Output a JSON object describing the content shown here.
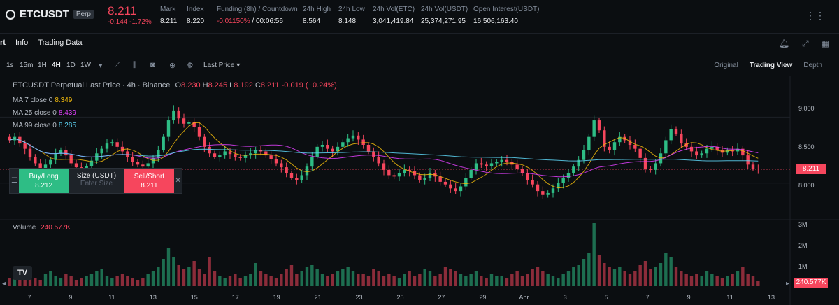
{
  "header": {
    "symbol": "ETCUSDT",
    "badge": "Perp",
    "last_price": "8.211",
    "change": "-0.144  -1.72%",
    "stats": [
      {
        "label": "Mark",
        "value": "8.211",
        "red": false
      },
      {
        "label": "Index",
        "value": "8.220",
        "red": false
      },
      {
        "label": "Funding (8h) / Countdown",
        "value_a": "-0.01150%",
        "value_b": " / 00:06:56",
        "red": true
      },
      {
        "label": "24h High",
        "value": "8.564",
        "red": false
      },
      {
        "label": "24h Low",
        "value": "8.148",
        "red": false
      },
      {
        "label": "24h Vol(ETC)",
        "value": "3,041,419.84",
        "red": false
      },
      {
        "label": "24h Vol(USDT)",
        "value": "25,374,271.95",
        "red": false
      },
      {
        "label": "Open Interest(USDT)",
        "value": "16,506,163.40",
        "red": false
      }
    ]
  },
  "tabs": [
    "rt",
    "Info",
    "Trading Data"
  ],
  "toolbar": {
    "timeframes": [
      "1s",
      "15m",
      "1H",
      "4H",
      "1D",
      "1W"
    ],
    "active_timeframe": "4H",
    "price_type": "Last Price",
    "views": [
      "Original",
      "Trading View",
      "Depth"
    ],
    "active_view": "Trading View"
  },
  "chart_legend": {
    "title": "ETCUSDT Perpetual Last Price · 4h · Binance",
    "o_label": "O",
    "o_value": "8.230",
    "h_label": "H",
    "h_value": "8.245",
    "l_label": "L",
    "l_value": "8.192",
    "c_label": "C",
    "c_value": "8.211",
    "change": "-0.019 (−0.24%)",
    "ma": [
      {
        "label": "MA 7 close 0",
        "value": "8.349",
        "color": "#f0b90b"
      },
      {
        "label": "MA 25 close 0",
        "value": "8.439",
        "color": "#e040fb"
      },
      {
        "label": "MA 99 close 0",
        "value": "8.285",
        "color": "#5dd5f6"
      }
    ]
  },
  "order_panel": {
    "buy_label": "Buy/Long",
    "buy_price": "8.212",
    "size_label": "Size (USDT)",
    "size_placeholder": "Enter Size",
    "sell_label": "Sell/Short",
    "sell_price": "8.211"
  },
  "price_axis": {
    "ticks": [
      "9.000",
      "8.500",
      "8.000"
    ],
    "current": "8.211"
  },
  "volume": {
    "label": "Volume",
    "value": "240.577K",
    "ticks": [
      "3M",
      "2M",
      "1M"
    ],
    "current": "240.577K"
  },
  "date_axis": [
    "7",
    "9",
    "11",
    "13",
    "15",
    "17",
    "19",
    "21",
    "23",
    "25",
    "27",
    "29",
    "Apr",
    "3",
    "5",
    "7",
    "9",
    "11",
    "13"
  ],
  "colors": {
    "up": "#2ebd85",
    "down": "#f6465d",
    "bg": "#0b0e11"
  },
  "chart_data": {
    "type": "candlestick",
    "interval": "4h",
    "ylim": [
      7.5,
      9.3
    ],
    "approx_closes": [
      8.65,
      8.7,
      8.6,
      8.52,
      8.4,
      8.3,
      8.22,
      8.28,
      8.35,
      8.45,
      8.5,
      8.42,
      8.3,
      8.24,
      8.2,
      8.26,
      8.34,
      8.45,
      8.52,
      8.6,
      8.62,
      8.55,
      8.48,
      8.4,
      8.32,
      8.28,
      8.25,
      8.3,
      8.38,
      8.5,
      8.7,
      8.95,
      9.1,
      8.98,
      8.9,
      8.92,
      8.85,
      8.7,
      8.55,
      8.45,
      8.4,
      8.42,
      8.48,
      8.44,
      8.4,
      8.38,
      8.42,
      8.45,
      8.5,
      8.48,
      8.42,
      8.36,
      8.3,
      8.24,
      8.15,
      8.08,
      8.05,
      8.12,
      8.25,
      8.4,
      8.55,
      8.58,
      8.52,
      8.48,
      8.55,
      8.62,
      8.68,
      8.72,
      8.66,
      8.58,
      8.48,
      8.4,
      8.3,
      8.2,
      8.12,
      8.1,
      8.15,
      8.2,
      8.18,
      8.12,
      8.05,
      8.08,
      8.15,
      8.1,
      8.02,
      7.98,
      7.92,
      7.88,
      7.95,
      8.08,
      8.2,
      8.3,
      8.28,
      8.26,
      8.3,
      8.32,
      8.35,
      8.32,
      8.28,
      8.22,
      8.15,
      8.05,
      7.98,
      7.88,
      7.82,
      7.85,
      7.92,
      8.0,
      8.08,
      8.15,
      8.25,
      8.35,
      8.5,
      8.7,
      8.95,
      8.8,
      8.55,
      8.5,
      8.62,
      8.7,
      8.65,
      8.58,
      8.52,
      8.38,
      8.22,
      8.2,
      8.3,
      8.45,
      8.65,
      8.82,
      8.75,
      8.6,
      8.55,
      8.48,
      8.42,
      8.45,
      8.52,
      8.55,
      8.5,
      8.46,
      8.5,
      8.48,
      8.52,
      8.42,
      8.28,
      8.22,
      8.21
    ],
    "approx_volumes_m": [
      0.4,
      0.9,
      0.6,
      0.3,
      0.5,
      0.4,
      0.3,
      0.6,
      0.7,
      0.5,
      0.4,
      0.6,
      0.5,
      0.3,
      0.4,
      0.5,
      0.6,
      0.7,
      0.8,
      0.5,
      0.4,
      0.5,
      0.6,
      0.5,
      0.4,
      0.3,
      0.4,
      0.6,
      0.7,
      0.9,
      1.3,
      1.8,
      1.4,
      1.0,
      0.8,
      0.9,
      1.2,
      0.8,
      0.6,
      1.4,
      0.7,
      0.5,
      0.4,
      0.5,
      0.6,
      0.4,
      0.5,
      0.6,
      1.1,
      0.7,
      0.6,
      0.5,
      0.4,
      0.6,
      0.8,
      1.0,
      0.6,
      0.7,
      0.9,
      1.0,
      0.8,
      0.6,
      0.5,
      0.6,
      0.7,
      0.8,
      0.9,
      0.7,
      0.6,
      0.6,
      0.5,
      0.8,
      0.7,
      0.5,
      0.6,
      0.5,
      0.4,
      0.6,
      0.7,
      0.5,
      0.6,
      0.8,
      0.7,
      0.5,
      0.6,
      0.9,
      0.8,
      0.7,
      0.6,
      0.5,
      0.6,
      0.7,
      0.5,
      0.4,
      0.6,
      0.5,
      0.5,
      0.4,
      0.6,
      0.7,
      0.5,
      0.6,
      0.8,
      0.9,
      0.7,
      0.6,
      0.5,
      0.4,
      0.6,
      0.7,
      0.9,
      1.0,
      1.3,
      1.6,
      3.0,
      1.5,
      1.1,
      0.9,
      0.8,
      0.9,
      0.7,
      0.6,
      0.7,
      1.0,
      1.2,
      0.8,
      0.9,
      1.1,
      1.6,
      1.4,
      0.9,
      0.7,
      0.6,
      0.5,
      0.6,
      0.5,
      0.7,
      0.6,
      0.5,
      0.4,
      0.5,
      0.6,
      0.7,
      0.9,
      0.6,
      0.5,
      0.24
    ]
  }
}
